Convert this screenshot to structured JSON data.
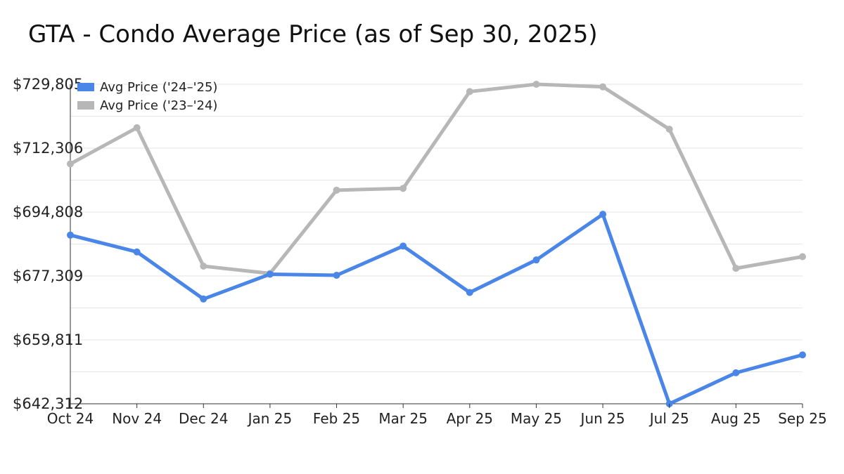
{
  "colors": {
    "series_2425": "#4a86e8",
    "series_2324": "#b7b7b7"
  },
  "chart_data": {
    "type": "line",
    "title": "GTA - Condo Average Price (as of Sep 30, 2025)",
    "xlabel": "",
    "ylabel": "",
    "categories": [
      "Oct 24",
      "Nov 24",
      "Dec 24",
      "Jan 25",
      "Feb 25",
      "Mar 25",
      "Apr 25",
      "May 25",
      "Jun 25",
      "Jul 25",
      "Aug 25",
      "Sep 25"
    ],
    "y_ticks": [
      "$642,312",
      "$659,811",
      "$677,309",
      "$694,808",
      "$712,306",
      "$729,805"
    ],
    "ylim": [
      642312,
      729805
    ],
    "grid": true,
    "legend_position": "top-left",
    "series": [
      {
        "name": "Avg Price ('24–'25)",
        "color": "#4a86e8",
        "values": [
          688500,
          683900,
          671000,
          677800,
          677500,
          685500,
          672800,
          681700,
          694200,
          642312,
          650800,
          655700
        ]
      },
      {
        "name": "Avg Price ('23–'24)",
        "color": "#b7b7b7",
        "values": [
          708000,
          717900,
          680000,
          678000,
          700800,
          701300,
          727800,
          729805,
          729100,
          717500,
          679400,
          682600
        ]
      }
    ]
  }
}
